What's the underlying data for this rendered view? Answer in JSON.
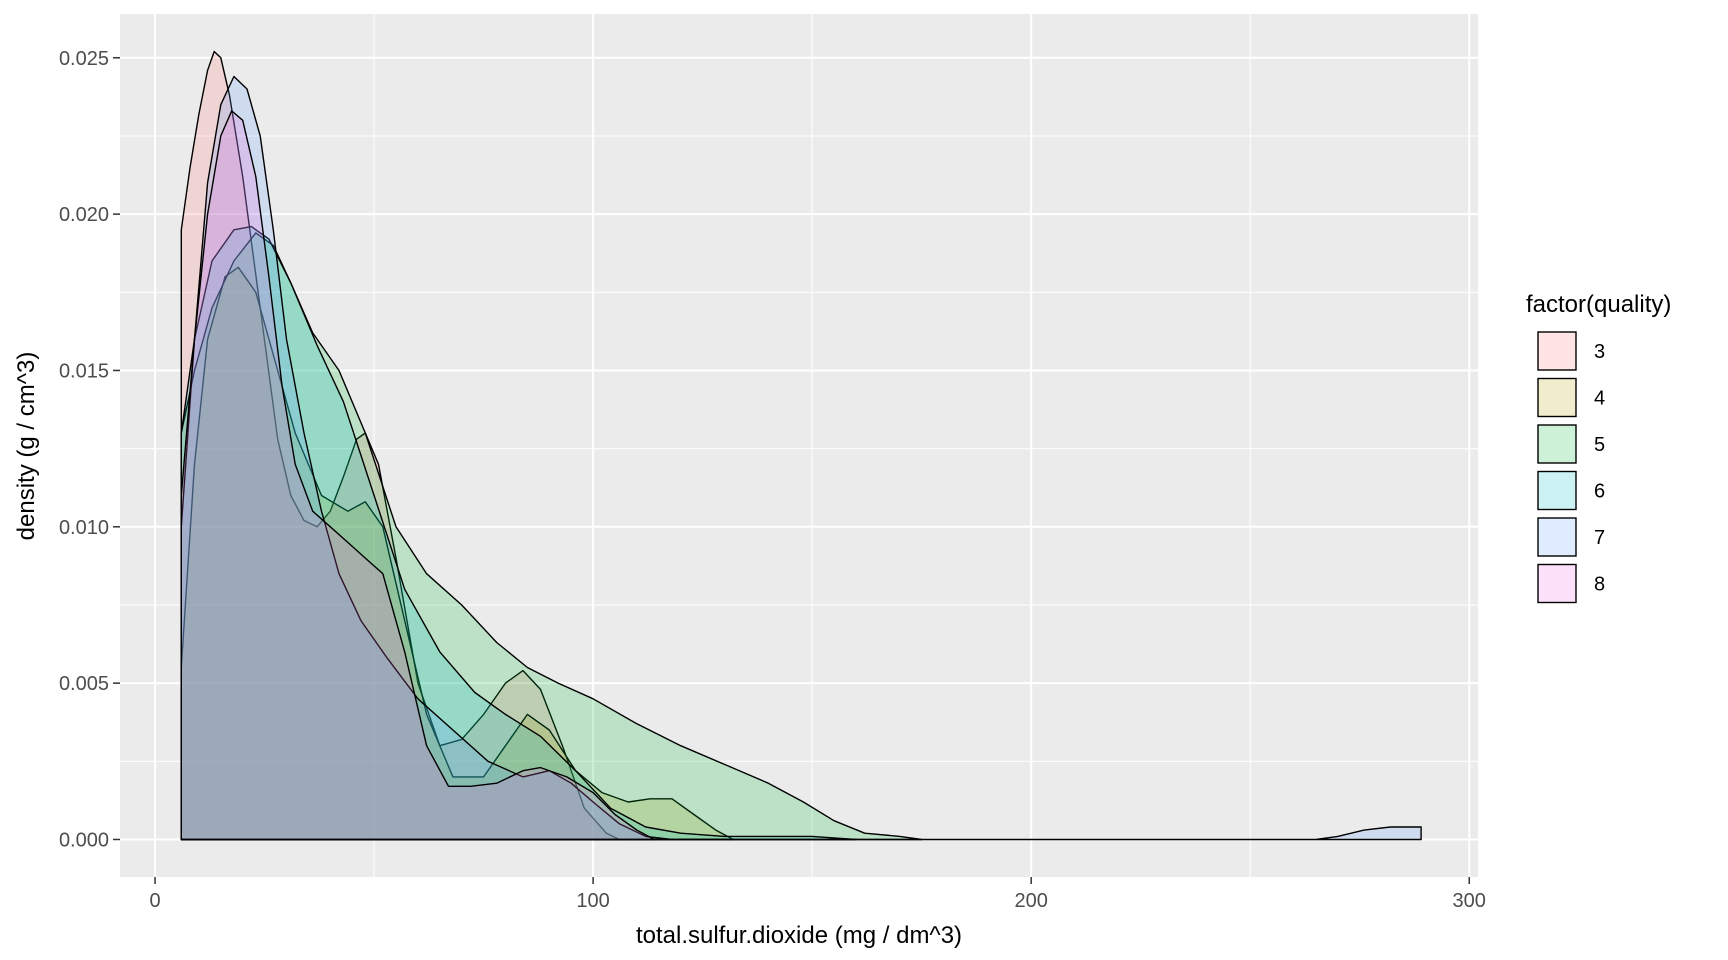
{
  "chart_data": {
    "type": "area",
    "xlabel": "total.sulfur.dioxide (mg / dm^3)",
    "ylabel": "density (g / cm^3)",
    "xlim": [
      -8,
      302
    ],
    "ylim": [
      -0.0012,
      0.0264
    ],
    "x_ticks": [
      0,
      100,
      200,
      300
    ],
    "x_tick_labels": [
      "0",
      "100",
      "200",
      "300"
    ],
    "y_ticks": [
      0,
      0.005,
      0.01,
      0.015,
      0.02,
      0.025
    ],
    "y_tick_labels": [
      "0.000",
      "0.005",
      "0.010",
      "0.015",
      "0.020",
      "0.025"
    ],
    "grid": true,
    "legend": {
      "title": "factor(quality)",
      "position": "right"
    },
    "series": [
      {
        "name": "3",
        "color": "#F8766D",
        "points": [
          [
            6,
            0
          ],
          [
            6,
            0.0195
          ],
          [
            8,
            0.0215
          ],
          [
            10,
            0.0232
          ],
          [
            12,
            0.0246
          ],
          [
            13.5,
            0.0252
          ],
          [
            15,
            0.025
          ],
          [
            17,
            0.0238
          ],
          [
            20,
            0.0212
          ],
          [
            24,
            0.017
          ],
          [
            28,
            0.0128
          ],
          [
            31,
            0.011
          ],
          [
            34,
            0.0102
          ],
          [
            37,
            0.01
          ],
          [
            40,
            0.0105
          ],
          [
            43,
            0.0116
          ],
          [
            46,
            0.0128
          ],
          [
            48,
            0.013
          ],
          [
            51,
            0.012
          ],
          [
            55,
            0.009
          ],
          [
            60,
            0.005
          ],
          [
            65,
            0.003
          ],
          [
            70,
            0.0032
          ],
          [
            75,
            0.004
          ],
          [
            80,
            0.005
          ],
          [
            84,
            0.0054
          ],
          [
            88,
            0.0048
          ],
          [
            93,
            0.003
          ],
          [
            98,
            0.001
          ],
          [
            103,
            0.0002
          ],
          [
            106,
            0
          ]
        ]
      },
      {
        "name": "4",
        "color": "#B79F00",
        "points": [
          [
            6,
            0
          ],
          [
            6,
            0.0055
          ],
          [
            9,
            0.012
          ],
          [
            12,
            0.016
          ],
          [
            16,
            0.018
          ],
          [
            19,
            0.0183
          ],
          [
            23,
            0.0175
          ],
          [
            27,
            0.0155
          ],
          [
            32,
            0.013
          ],
          [
            38,
            0.011
          ],
          [
            44,
            0.0105
          ],
          [
            48,
            0.0108
          ],
          [
            52,
            0.01
          ],
          [
            57,
            0.007
          ],
          [
            62,
            0.004
          ],
          [
            68,
            0.002
          ],
          [
            75,
            0.002
          ],
          [
            80,
            0.003
          ],
          [
            85,
            0.004
          ],
          [
            90,
            0.0035
          ],
          [
            96,
            0.0022
          ],
          [
            102,
            0.0015
          ],
          [
            108,
            0.0012
          ],
          [
            113,
            0.0013
          ],
          [
            118,
            0.0013
          ],
          [
            123,
            0.0008
          ],
          [
            128,
            0.0003
          ],
          [
            132,
            0
          ]
        ]
      },
      {
        "name": "5",
        "color": "#00BA38",
        "points": [
          [
            6,
            0
          ],
          [
            6,
            0.013
          ],
          [
            9,
            0.015
          ],
          [
            13,
            0.017
          ],
          [
            18,
            0.0185
          ],
          [
            23,
            0.0194
          ],
          [
            27,
            0.019
          ],
          [
            31,
            0.0178
          ],
          [
            36,
            0.0162
          ],
          [
            42,
            0.015
          ],
          [
            48,
            0.013
          ],
          [
            55,
            0.01
          ],
          [
            62,
            0.0085
          ],
          [
            70,
            0.0075
          ],
          [
            78,
            0.0063
          ],
          [
            85,
            0.0055
          ],
          [
            92,
            0.005
          ],
          [
            100,
            0.0045
          ],
          [
            110,
            0.0037
          ],
          [
            120,
            0.003
          ],
          [
            130,
            0.0024
          ],
          [
            140,
            0.0018
          ],
          [
            148,
            0.0012
          ],
          [
            155,
            0.0006
          ],
          [
            162,
            0.0002
          ],
          [
            170,
            0.0001
          ],
          [
            175,
            0
          ]
        ]
      },
      {
        "name": "6",
        "color": "#00BFC4",
        "points": [
          [
            6,
            0
          ],
          [
            6,
            0.013
          ],
          [
            9,
            0.016
          ],
          [
            13,
            0.0185
          ],
          [
            18,
            0.0195
          ],
          [
            22,
            0.0196
          ],
          [
            26,
            0.0192
          ],
          [
            31,
            0.0178
          ],
          [
            37,
            0.0158
          ],
          [
            43,
            0.014
          ],
          [
            50,
            0.011
          ],
          [
            57,
            0.008
          ],
          [
            65,
            0.006
          ],
          [
            73,
            0.0047
          ],
          [
            80,
            0.004
          ],
          [
            88,
            0.0033
          ],
          [
            96,
            0.0022
          ],
          [
            104,
            0.001
          ],
          [
            112,
            0.0004
          ],
          [
            120,
            0.0002
          ],
          [
            130,
            0.0001
          ],
          [
            140,
            0.0001
          ],
          [
            150,
            0.0001
          ],
          [
            160,
            0
          ]
        ]
      },
      {
        "name": "7",
        "color": "#619CFF",
        "points": [
          [
            6,
            0
          ],
          [
            6,
            0.01
          ],
          [
            9,
            0.016
          ],
          [
            12,
            0.021
          ],
          [
            15,
            0.0235
          ],
          [
            18,
            0.0244
          ],
          [
            21,
            0.024
          ],
          [
            24,
            0.0225
          ],
          [
            27,
            0.0195
          ],
          [
            30,
            0.016
          ],
          [
            34,
            0.013
          ],
          [
            38,
            0.0105
          ],
          [
            42,
            0.0085
          ],
          [
            47,
            0.007
          ],
          [
            53,
            0.0058
          ],
          [
            60,
            0.0045
          ],
          [
            68,
            0.0035
          ],
          [
            76,
            0.0025
          ],
          [
            84,
            0.002
          ],
          [
            90,
            0.0022
          ],
          [
            95,
            0.0018
          ],
          [
            100,
            0.0012
          ],
          [
            106,
            0.0005
          ],
          [
            112,
            0.0001
          ],
          [
            118,
            0
          ],
          [
            200,
            0
          ],
          [
            265,
            0
          ],
          [
            270,
            0.0001
          ],
          [
            276,
            0.0003
          ],
          [
            282,
            0.0004
          ],
          [
            287,
            0.0004
          ],
          [
            289,
            0.0004
          ],
          [
            289,
            0
          ]
        ]
      },
      {
        "name": "8",
        "color": "#F564E3",
        "points": [
          [
            6,
            0
          ],
          [
            6,
            0.011
          ],
          [
            9,
            0.016
          ],
          [
            12,
            0.02
          ],
          [
            15,
            0.0225
          ],
          [
            17.5,
            0.0233
          ],
          [
            20,
            0.023
          ],
          [
            23,
            0.0212
          ],
          [
            26,
            0.018
          ],
          [
            29,
            0.0145
          ],
          [
            32,
            0.012
          ],
          [
            36,
            0.0105
          ],
          [
            40,
            0.01
          ],
          [
            44,
            0.0095
          ],
          [
            48,
            0.009
          ],
          [
            52,
            0.0085
          ],
          [
            57,
            0.006
          ],
          [
            62,
            0.003
          ],
          [
            67,
            0.0017
          ],
          [
            72,
            0.0017
          ],
          [
            78,
            0.0018
          ],
          [
            84,
            0.0022
          ],
          [
            88,
            0.0023
          ],
          [
            94,
            0.002
          ],
          [
            100,
            0.0015
          ],
          [
            105,
            0.0008
          ],
          [
            110,
            0.0003
          ],
          [
            114,
            0
          ]
        ]
      }
    ]
  }
}
